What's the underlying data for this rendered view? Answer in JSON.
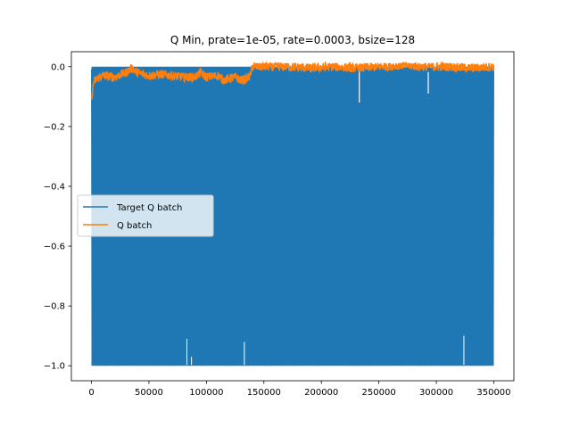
{
  "chart_data": {
    "type": "line",
    "title": "Q Min, prate=1e-05, rate=0.0003, bsize=128",
    "xlabel": "",
    "ylabel": "",
    "xlim": [
      -17500,
      367500
    ],
    "ylim": [
      -1.05,
      0.05
    ],
    "xticks": [
      0,
      50000,
      100000,
      150000,
      200000,
      250000,
      300000,
      350000
    ],
    "xtick_labels": [
      "0",
      "50000",
      "100000",
      "150000",
      "200000",
      "250000",
      "300000",
      "350000"
    ],
    "yticks": [
      0.0,
      -0.2,
      -0.4,
      -0.6,
      -0.8,
      -1.0
    ],
    "ytick_labels": [
      "0.0",
      "−0.2",
      "−0.4",
      "−0.6",
      "−0.8",
      "−1.0"
    ],
    "grid": false,
    "legend_placement": "center-left",
    "series": [
      {
        "name": "Target Q batch",
        "color": "#1f77b4",
        "description_values": {
          "x_range": [
            0,
            350000
          ],
          "upper_envelope": [
            [
              0,
              -0.005
            ],
            [
              140000,
              -0.005
            ],
            [
              140000,
              0.0
            ],
            [
              350000,
              0.0
            ]
          ],
          "lower_envelope": [
            [
              0,
              -1.0
            ],
            [
              350000,
              -1.0
            ]
          ],
          "dropouts_top": [
            [
              233000,
              -0.12
            ],
            [
              293000,
              -0.09
            ]
          ],
          "spikes_bottom": [
            [
              83000,
              -0.91
            ],
            [
              87000,
              -0.97
            ],
            [
              133000,
              -0.92
            ],
            [
              324000,
              -0.9
            ]
          ]
        }
      },
      {
        "name": "Q batch",
        "color": "#ff7f0e",
        "points": [
          [
            0,
            -0.11
          ],
          [
            2000,
            -0.05
          ],
          [
            5000,
            -0.04
          ],
          [
            10000,
            -0.03
          ],
          [
            20000,
            -0.035
          ],
          [
            30000,
            -0.02
          ],
          [
            35000,
            -0.005
          ],
          [
            40000,
            -0.02
          ],
          [
            50000,
            -0.03
          ],
          [
            60000,
            -0.025
          ],
          [
            70000,
            -0.03
          ],
          [
            80000,
            -0.035
          ],
          [
            90000,
            -0.035
          ],
          [
            95000,
            -0.02
          ],
          [
            100000,
            -0.035
          ],
          [
            110000,
            -0.03
          ],
          [
            115000,
            -0.045
          ],
          [
            120000,
            -0.04
          ],
          [
            125000,
            -0.035
          ],
          [
            130000,
            -0.045
          ],
          [
            135000,
            -0.04
          ],
          [
            138000,
            -0.03
          ],
          [
            140000,
            0.0
          ],
          [
            150000,
            0.0
          ],
          [
            170000,
            0.0
          ],
          [
            190000,
            -0.005
          ],
          [
            210000,
            0.0
          ],
          [
            230000,
            -0.005
          ],
          [
            250000,
            0.0
          ],
          [
            270000,
            0.005
          ],
          [
            290000,
            0.0
          ],
          [
            310000,
            0.0
          ],
          [
            330000,
            -0.005
          ],
          [
            350000,
            0.0
          ]
        ]
      }
    ]
  }
}
